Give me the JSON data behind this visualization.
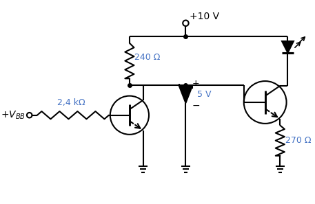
{
  "bg_color": "#ffffff",
  "line_color": "#000000",
  "blue_color": "#4472c4",
  "lw": 1.5,
  "vcc_label": "+10 V",
  "r240_label": "240 Ω",
  "r24k_label": "2,4 kΩ",
  "r270_label": "270 Ω",
  "v5_label": "5 V",
  "vbb_label": "+V_{BB}"
}
